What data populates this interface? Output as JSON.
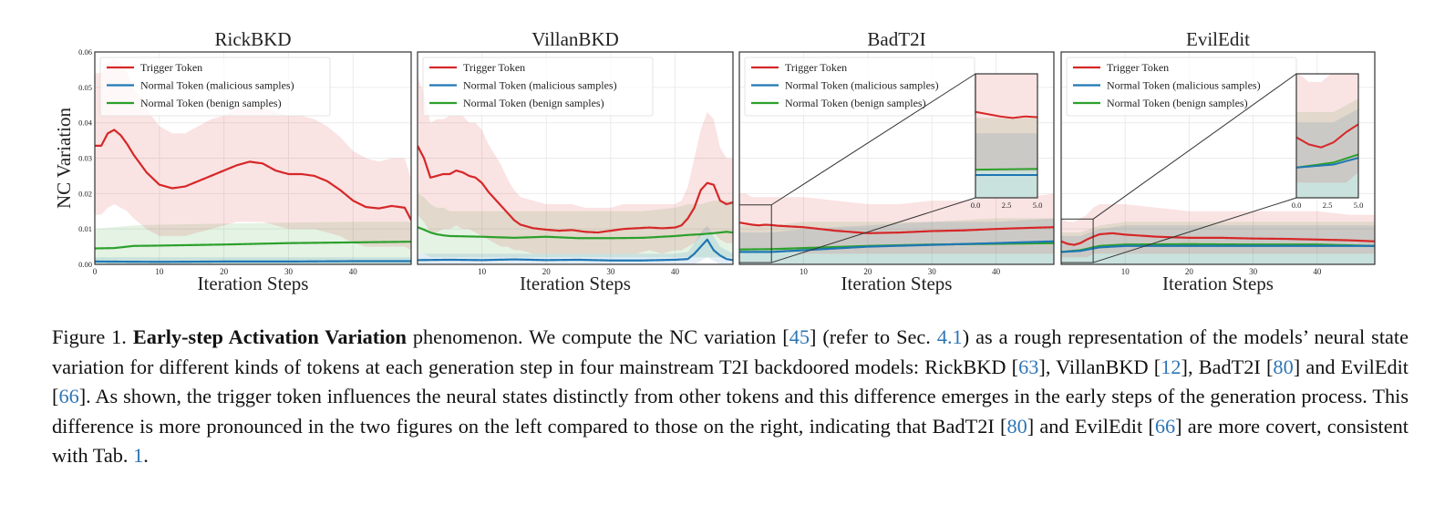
{
  "chart_data": [
    {
      "type": "line",
      "title": "RickBKD",
      "xlabel": "Iteration Steps",
      "ylabel": "NC Variation",
      "xlim": [
        0,
        49
      ],
      "ylim": [
        0,
        0.06
      ],
      "x_ticks": [
        0,
        10,
        20,
        30,
        40
      ],
      "y_ticks": [
        0.0,
        0.01,
        0.02,
        0.03,
        0.04,
        0.05,
        0.06
      ],
      "y_tick_labels": [
        "0.00",
        "0.01",
        "0.02",
        "0.03",
        "0.04",
        "0.05",
        "0.06"
      ],
      "grid": true,
      "legend_position": "top-left",
      "series": [
        {
          "name": "Trigger Token",
          "color": "#d62728",
          "x": [
            0,
            1,
            2,
            3,
            4,
            5,
            6,
            8,
            10,
            12,
            14,
            16,
            18,
            20,
            22,
            24,
            26,
            28,
            30,
            32,
            34,
            36,
            38,
            40,
            42,
            44,
            46,
            48,
            49
          ],
          "y": [
            0.0335,
            0.0335,
            0.037,
            0.038,
            0.0365,
            0.034,
            0.031,
            0.026,
            0.0225,
            0.0215,
            0.022,
            0.0235,
            0.025,
            0.0265,
            0.028,
            0.029,
            0.0285,
            0.0265,
            0.0255,
            0.0255,
            0.025,
            0.0235,
            0.021,
            0.018,
            0.0162,
            0.0158,
            0.0165,
            0.016,
            0.0125
          ],
          "band_lower": [
            0.014,
            0.014,
            0.016,
            0.017,
            0.016,
            0.015,
            0.013,
            0.01,
            0.008,
            0.008,
            0.008,
            0.009,
            0.01,
            0.011,
            0.012,
            0.012,
            0.012,
            0.011,
            0.01,
            0.01,
            0.01,
            0.009,
            0.008,
            0.006,
            0.005,
            0.005,
            0.005,
            0.005,
            0.004
          ],
          "band_upper": [
            0.054,
            0.054,
            0.057,
            0.058,
            0.057,
            0.054,
            0.05,
            0.044,
            0.039,
            0.037,
            0.037,
            0.039,
            0.041,
            0.042,
            0.044,
            0.045,
            0.045,
            0.043,
            0.042,
            0.042,
            0.041,
            0.039,
            0.036,
            0.032,
            0.03,
            0.029,
            0.03,
            0.03,
            0.024
          ]
        },
        {
          "name": "Normal Token (malicious samples)",
          "color": "#1f77b4",
          "x": [
            0,
            10,
            20,
            30,
            40,
            49
          ],
          "y": [
            0.0008,
            0.0007,
            0.0008,
            0.0008,
            0.0009,
            0.0009
          ],
          "band_lower": [
            0,
            0,
            0,
            0,
            0,
            0
          ],
          "band_upper": [
            0.002,
            0.002,
            0.002,
            0.002,
            0.002,
            0.002
          ]
        },
        {
          "name": "Normal Token (benign samples)",
          "color": "#2ca02c",
          "x": [
            0,
            3,
            6,
            10,
            20,
            30,
            40,
            49
          ],
          "y": [
            0.0045,
            0.0046,
            0.0052,
            0.0053,
            0.0056,
            0.006,
            0.0062,
            0.0064
          ],
          "band_lower": [
            0,
            0,
            0,
            0,
            0,
            0,
            0,
            0
          ],
          "band_upper": [
            0.01,
            0.0105,
            0.011,
            0.0112,
            0.0115,
            0.0118,
            0.012,
            0.012
          ]
        }
      ]
    },
    {
      "type": "line",
      "title": "VillanBKD",
      "xlabel": "Iteration Steps",
      "xlim": [
        0,
        49
      ],
      "ylim": [
        0,
        0.06
      ],
      "x_ticks": [
        10,
        20,
        30,
        40
      ],
      "grid": true,
      "legend_position": "top-left",
      "series": [
        {
          "name": "Trigger Token",
          "color": "#d62728",
          "x": [
            0,
            1,
            2,
            3,
            4,
            5,
            6,
            7,
            8,
            9,
            10,
            11,
            12,
            13,
            14,
            15,
            16,
            18,
            20,
            22,
            24,
            26,
            28,
            30,
            32,
            34,
            36,
            38,
            40,
            41,
            42,
            43,
            44,
            45,
            46,
            47,
            48,
            49
          ],
          "y": [
            0.0335,
            0.03,
            0.0245,
            0.025,
            0.0255,
            0.0255,
            0.0265,
            0.026,
            0.025,
            0.0245,
            0.023,
            0.0205,
            0.0185,
            0.0165,
            0.0145,
            0.0125,
            0.0112,
            0.0102,
            0.0098,
            0.0095,
            0.0097,
            0.0092,
            0.009,
            0.0095,
            0.01,
            0.0102,
            0.0104,
            0.0102,
            0.0104,
            0.011,
            0.013,
            0.016,
            0.021,
            0.023,
            0.0225,
            0.018,
            0.017,
            0.0175
          ],
          "band_lower": [
            0.014,
            0.012,
            0.009,
            0.009,
            0.01,
            0.01,
            0.011,
            0.01,
            0.01,
            0.009,
            0.008,
            0.007,
            0.006,
            0.005,
            0.005,
            0.004,
            0.004,
            0.003,
            0.003,
            0.003,
            0.003,
            0.003,
            0.003,
            0.003,
            0.003,
            0.003,
            0.004,
            0.003,
            0.004,
            0.004,
            0.005,
            0.006,
            0.008,
            0.009,
            0.009,
            0.007,
            0.006,
            0.006
          ],
          "band_upper": [
            0.053,
            0.048,
            0.04,
            0.041,
            0.041,
            0.042,
            0.042,
            0.042,
            0.04,
            0.04,
            0.038,
            0.034,
            0.031,
            0.028,
            0.024,
            0.021,
            0.019,
            0.018,
            0.017,
            0.017,
            0.017,
            0.016,
            0.016,
            0.016,
            0.017,
            0.017,
            0.017,
            0.017,
            0.017,
            0.018,
            0.022,
            0.03,
            0.038,
            0.043,
            0.041,
            0.033,
            0.03,
            0.03
          ]
        },
        {
          "name": "Normal Token (malicious samples)",
          "color": "#1f77b4",
          "x": [
            0,
            5,
            10,
            15,
            20,
            25,
            30,
            35,
            40,
            42,
            43,
            44,
            45,
            46,
            47,
            48,
            49
          ],
          "y": [
            0.0012,
            0.0013,
            0.0012,
            0.0014,
            0.0012,
            0.0013,
            0.0011,
            0.0011,
            0.0013,
            0.0015,
            0.003,
            0.005,
            0.007,
            0.004,
            0.0025,
            0.0015,
            0.0012
          ],
          "band_lower": [
            0,
            0,
            0,
            0,
            0,
            0,
            0,
            0,
            0,
            0,
            0,
            0.001,
            0.002,
            0.001,
            0,
            0,
            0
          ],
          "band_upper": [
            0.003,
            0.003,
            0.003,
            0.003,
            0.003,
            0.003,
            0.003,
            0.003,
            0.003,
            0.0035,
            0.006,
            0.009,
            0.011,
            0.008,
            0.005,
            0.004,
            0.003
          ]
        },
        {
          "name": "Normal Token (benign samples)",
          "color": "#2ca02c",
          "x": [
            0,
            1,
            2,
            3,
            4,
            5,
            10,
            15,
            20,
            25,
            30,
            35,
            40,
            42,
            44,
            46,
            47,
            48,
            49
          ],
          "y": [
            0.0105,
            0.0098,
            0.009,
            0.0085,
            0.0082,
            0.008,
            0.0078,
            0.0075,
            0.0078,
            0.0074,
            0.0074,
            0.0075,
            0.008,
            0.0083,
            0.0085,
            0.0088,
            0.009,
            0.0092,
            0.009
          ],
          "band_lower": [
            0.003,
            0.003,
            0.002,
            0.002,
            0.002,
            0.002,
            0.002,
            0.002,
            0.002,
            0.002,
            0.002,
            0.002,
            0.002,
            0.002,
            0.002,
            0.002,
            0.002,
            0.002,
            0.002
          ],
          "band_upper": [
            0.02,
            0.019,
            0.017,
            0.016,
            0.016,
            0.015,
            0.015,
            0.015,
            0.015,
            0.015,
            0.015,
            0.015,
            0.016,
            0.017,
            0.017,
            0.018,
            0.018,
            0.018,
            0.018
          ]
        }
      ]
    },
    {
      "type": "line",
      "title": "BadT2I",
      "xlabel": "Iteration Steps",
      "xlim": [
        0,
        49
      ],
      "ylim": [
        0,
        0.06
      ],
      "x_ticks": [
        10,
        20,
        30,
        40
      ],
      "grid": true,
      "legend_position": "top-left",
      "inset": {
        "zoom_range": [
          0,
          5
        ],
        "x_ticks": [
          0.0,
          2.5,
          5.0
        ],
        "x_tick_labels": [
          "0.0",
          "2.5",
          "5.0"
        ]
      },
      "series": [
        {
          "name": "Trigger Token",
          "color": "#d62728",
          "x": [
            0,
            1,
            2,
            3,
            4,
            5,
            6,
            10,
            15,
            20,
            25,
            30,
            35,
            40,
            45,
            49
          ],
          "y": [
            0.0118,
            0.0115,
            0.0112,
            0.011,
            0.0112,
            0.0111,
            0.0109,
            0.0105,
            0.0095,
            0.0088,
            0.009,
            0.0094,
            0.0096,
            0.01,
            0.0103,
            0.0105
          ],
          "band_lower": [
            0.004,
            0.004,
            0.004,
            0.004,
            0.004,
            0.004,
            0.004,
            0.003,
            0.003,
            0.003,
            0.003,
            0.003,
            0.003,
            0.003,
            0.003,
            0.003
          ],
          "band_upper": [
            0.02,
            0.02,
            0.019,
            0.019,
            0.019,
            0.019,
            0.019,
            0.019,
            0.018,
            0.017,
            0.017,
            0.018,
            0.018,
            0.019,
            0.019,
            0.02
          ]
        },
        {
          "name": "Normal Token (malicious samples)",
          "color": "#1f77b4",
          "x": [
            0,
            5,
            10,
            20,
            30,
            40,
            49
          ],
          "y": [
            0.0035,
            0.0035,
            0.004,
            0.005,
            0.0055,
            0.006,
            0.0065
          ],
          "band_lower": [
            0,
            0,
            0,
            0,
            0,
            0,
            0
          ],
          "band_upper": [
            0.009,
            0.009,
            0.01,
            0.011,
            0.012,
            0.012,
            0.013
          ]
        },
        {
          "name": "Normal Token (benign samples)",
          "color": "#2ca02c",
          "x": [
            0,
            5,
            10,
            20,
            30,
            40,
            49
          ],
          "y": [
            0.0042,
            0.0043,
            0.0046,
            0.0052,
            0.0056,
            0.0058,
            0.006
          ],
          "band_lower": [
            0,
            0,
            0,
            0,
            0,
            0,
            0
          ],
          "band_upper": [
            0.011,
            0.011,
            0.012,
            0.012,
            0.012,
            0.013,
            0.013
          ]
        }
      ]
    },
    {
      "type": "line",
      "title": "EvilEdit",
      "xlabel": "Iteration Steps",
      "xlim": [
        0,
        49
      ],
      "ylim": [
        0,
        0.06
      ],
      "x_ticks": [
        10,
        20,
        30,
        40
      ],
      "grid": true,
      "legend_position": "top-left",
      "inset": {
        "zoom_range": [
          0,
          5
        ],
        "x_ticks": [
          0.0,
          2.5,
          5.0
        ],
        "x_tick_labels": [
          "0.0",
          "2.5",
          "5.0"
        ]
      },
      "series": [
        {
          "name": "Trigger Token",
          "color": "#d62728",
          "x": [
            0,
            1,
            2,
            3,
            4,
            5,
            6,
            8,
            10,
            15,
            20,
            25,
            30,
            35,
            40,
            45,
            49
          ],
          "y": [
            0.0065,
            0.0058,
            0.0055,
            0.006,
            0.007,
            0.0078,
            0.0085,
            0.0088,
            0.0084,
            0.0078,
            0.0075,
            0.0075,
            0.0073,
            0.0072,
            0.007,
            0.0068,
            0.0065
          ],
          "band_lower": [
            0.002,
            0.002,
            0.002,
            0.002,
            0.002,
            0.003,
            0.003,
            0.003,
            0.003,
            0.003,
            0.003,
            0.003,
            0.003,
            0.003,
            0.003,
            0.003,
            0.003
          ],
          "band_upper": [
            0.013,
            0.012,
            0.012,
            0.013,
            0.014,
            0.016,
            0.017,
            0.017,
            0.017,
            0.016,
            0.015,
            0.015,
            0.015,
            0.015,
            0.015,
            0.014,
            0.014
          ]
        },
        {
          "name": "Normal Token (malicious samples)",
          "color": "#1f77b4",
          "x": [
            0,
            3,
            6,
            10,
            20,
            30,
            40,
            49
          ],
          "y": [
            0.0035,
            0.0038,
            0.0048,
            0.0052,
            0.0052,
            0.0052,
            0.0052,
            0.0052
          ],
          "band_lower": [
            0,
            0,
            0,
            0,
            0,
            0,
            0,
            0
          ],
          "band_upper": [
            0.008,
            0.008,
            0.01,
            0.011,
            0.011,
            0.011,
            0.011,
            0.011
          ]
        },
        {
          "name": "Normal Token (benign samples)",
          "color": "#2ca02c",
          "x": [
            0,
            3,
            6,
            10,
            20,
            30,
            40,
            49
          ],
          "y": [
            0.0035,
            0.004,
            0.0052,
            0.0056,
            0.0057,
            0.0056,
            0.0056,
            0.0052
          ],
          "band_lower": [
            0,
            0,
            0,
            0,
            0,
            0,
            0,
            0
          ],
          "band_upper": [
            0.009,
            0.009,
            0.011,
            0.012,
            0.012,
            0.012,
            0.012,
            0.012
          ]
        }
      ]
    }
  ],
  "caption": {
    "p1": "Figure 1. ",
    "p2": "Early-step Activation Variation",
    "p3": " phenomenon. We compute the NC variation [",
    "p4": "45",
    "p5": "] (refer to Sec. ",
    "p6": "4.1",
    "p7": ") as a rough representation of the models’ neural state variation for different kinds of tokens at each generation step in four mainstream T2I backdoored models: RickBKD [",
    "p8": "63",
    "p9": "], VillanBKD [",
    "p10": "12",
    "p11": "], BadT2I [",
    "p12": "80",
    "p13": "] and EvilEdit [",
    "p14": "66",
    "p15": "]. As shown, the trigger token influences the neural states distinctly from other tokens and this difference emerges in the early steps of the generation process. This difference is more pronounced in the two figures on the left compared to those on the right, indicating that BadT2I [",
    "p16": "80",
    "p17": "] and EvilEdit [",
    "p18": "66",
    "p19": "] are more covert, consistent with Tab. ",
    "p20": "1",
    "p21": "."
  }
}
